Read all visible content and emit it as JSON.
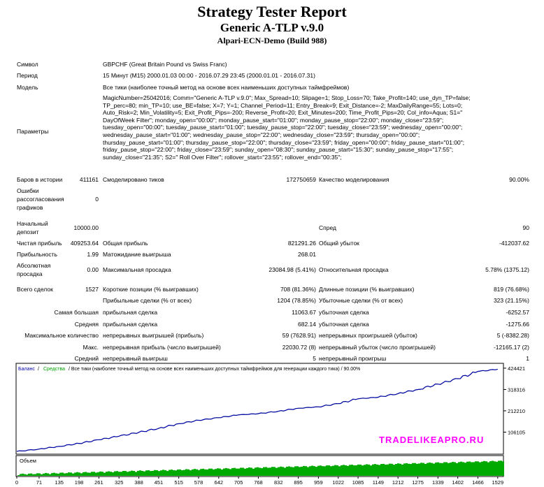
{
  "report": {
    "title": "Strategy Tester Report",
    "ea_name": "Generic A-TLP v.9.0",
    "server": "Alpari-ECN-Demo (Build 988)"
  },
  "info": {
    "symbol_label": "Символ",
    "symbol_value": "GBPCHF (Great Britain Pound vs Swiss Franc)",
    "period_label": "Период",
    "period_value": "15 Минут (M15) 2000.01.03 00:00 - 2016.07.29 23:45 (2000.01.01 - 2016.07.31)",
    "model_label": "Модель",
    "model_value": "Все тики (наиболее точный метод на основе всех наименьших доступных таймфреймов)",
    "params_label": "Параметры",
    "params_lines": [
      "MagicNumber=25042016; Comm=\"Generic A-TLP v.9.0\"; Max_Spread=10; Slipage=1; Stop_Loss=70; Take_Profit=140; use_dyn_TP=false;",
      "TP_perc=80; min_TP=10; use_BE=false; X=7; Y=1; Channel_Period=11; Entry_Break=9; Exit_Distance=-2; MaxDailyRange=55; Lots=0;",
      "Auto_Risk=2; Min_Volatility=5; Exit_Profit_Pips=-200; Reverse_Profit=20; Exit_Minutes=200; Time_Profit_Pips=20; Col_info=Aqua; S1=\"",
      "DayOfWeek Filter\"; monday_open=\"00:00\"; monday_pause_start=\"01:00\"; monday_pause_stop=\"22:00\"; monday_close=\"23:59\";",
      "tuesday_open=\"00:00\"; tuesday_pause_start=\"01:00\"; tuesday_pause_stop=\"22:00\"; tuesday_close=\"23:59\"; wednesday_open=\"00:00\";",
      "wednesday_pause_start=\"01:00\"; wednesday_pause_stop=\"22:00\"; wednesday_close=\"23:59\"; thursday_open=\"00:00\";",
      "thursday_pause_start=\"01:00\"; thursday_pause_stop=\"22:00\"; thursday_close=\"23:59\"; friday_open=\"00:00\"; friday_pause_start=\"01:00\";",
      "friday_pause_stop=\"22:00\"; friday_close=\"23:59\"; sunday_open=\"08:30\"; sunday_pause_start=\"15:30\"; sunday_pause_stop=\"17:55\";",
      "sunday_close=\"21:35\"; S2=\" Roll Over Filter\"; rollover_start=\"23:55\"; rollover_end=\"00:35\";"
    ]
  },
  "stats": {
    "bars_label": "Баров в истории",
    "bars_value": "411161",
    "ticks_label": "Смоделировано тиков",
    "ticks_value": "172750659",
    "quality_label": "Качество моделирования",
    "quality_value": "90.00%",
    "mismatch_label_1": "Ошибки",
    "mismatch_label_2": "рассогласования",
    "mismatch_label_3": "графиков",
    "mismatch_value": "0",
    "deposit_label_1": "Начальный",
    "deposit_label_2": "депозит",
    "deposit_value": "10000.00",
    "spread_label": "Спред",
    "spread_value": "90",
    "net_profit_label": "Чистая прибыль",
    "net_profit_value": "409253.64",
    "gross_profit_label": "Общая прибыль",
    "gross_profit_value": "821291.26",
    "gross_loss_label": "Общий убыток",
    "gross_loss_value": "-412037.62",
    "profit_factor_label": "Прибыльность",
    "profit_factor_value": "1.99",
    "expected_payoff_label": "Матожидание выигрыша",
    "expected_payoff_value": "268.01",
    "abs_dd_label_1": "Абсолютная",
    "abs_dd_label_2": "просадка",
    "abs_dd_value": "0.00",
    "max_dd_label": "Максимальная просадка",
    "max_dd_value": "23084.98 (5.41%)",
    "rel_dd_label": "Относительная просадка",
    "rel_dd_value": "5.78% (1375.12)",
    "total_trades_label": "Всего сделок",
    "total_trades_value": "1527",
    "short_label": "Короткие позиции (% выигравших)",
    "short_value": "708 (81.36%)",
    "long_label": "Длинные позиции (% выигравших)",
    "long_value": "819 (76.68%)",
    "profit_trades_label": "Прибыльные сделки (% от всех)",
    "profit_trades_value": "1204 (78.85%)",
    "loss_trades_label": "Убыточные сделки (% от всех)",
    "loss_trades_value": "323 (21.15%)",
    "largest_label_1": "Самая большая",
    "largest_label_2": "прибыльная сделка",
    "largest_profit_value": "11063.67",
    "largest_loss_label": "убыточная сделка",
    "largest_loss_value": "-6252.57",
    "average_label_1": "Средняя",
    "average_label_2": "прибыльная сделка",
    "average_profit_value": "682.14",
    "average_loss_label": "убыточная сделка",
    "average_loss_value": "-1275.66",
    "max_count_label_1": "Максимальное количество",
    "max_count_label_2": "непрерывных выигрышей (прибыль)",
    "max_count_wins_value": "59 (7628.91)",
    "max_count_losses_label": "непрерывных проигрышей (убыток)",
    "max_count_losses_value": "5 (-8382.28)",
    "max_profit_label_1": "Макс.",
    "max_profit_label_2": "непрерывная прибыль (число выигрышей)",
    "max_profit_value": "22030.72 (8)",
    "max_loss_label": "непрерывный убыток (число проигрышей)",
    "max_loss_value": "-12165.17 (2)",
    "avg_cons_label_1": "Средний",
    "avg_cons_label_2": "непрерывный выигрыш",
    "avg_cons_wins_value": "5",
    "avg_cons_loss_label": "непрерывный проигрыш",
    "avg_cons_loss_value": "1"
  },
  "chart_data": {
    "type": "line",
    "legend": {
      "balance": "Баланс",
      "separator": " / ",
      "equity": "Средства",
      "rest": " / Все тики (наиболее точный метод на основе всех наименьших доступных таймфреймов для генерации каждого тика) / 90.00%"
    },
    "volume_label": "Объем",
    "watermark": "TRADELIKEAPRO.RU",
    "y_ticks": [
      "424421",
      "318316",
      "212210",
      "106105"
    ],
    "x_ticks": [
      "0",
      "71",
      "135",
      "198",
      "261",
      "325",
      "388",
      "451",
      "515",
      "578",
      "642",
      "705",
      "768",
      "832",
      "895",
      "959",
      "1022",
      "1085",
      "1149",
      "1212",
      "1275",
      "1339",
      "1402",
      "1466",
      "1529"
    ],
    "x": [
      0,
      71,
      135,
      198,
      261,
      325,
      388,
      451,
      515,
      578,
      642,
      705,
      768,
      832,
      895,
      959,
      1022,
      1085,
      1149,
      1212,
      1275,
      1339,
      1402,
      1466,
      1529
    ],
    "series": [
      {
        "name": "Баланс",
        "values": [
          10000,
          22000,
          35000,
          50000,
          68000,
          86000,
          105000,
          125000,
          148000,
          165000,
          178000,
          192000,
          198000,
          210000,
          225000,
          232000,
          248000,
          272000,
          280000,
          298000,
          318000,
          345000,
          372000,
          408000,
          419253
        ]
      }
    ],
    "ylim": [
      0,
      445000
    ],
    "xlim": [
      0,
      1545
    ],
    "colors": {
      "balance": "#0000a8",
      "equity": "#00a000",
      "volume": "#00aa00",
      "axis": "#000000",
      "watermark": "#ff00ff"
    }
  }
}
